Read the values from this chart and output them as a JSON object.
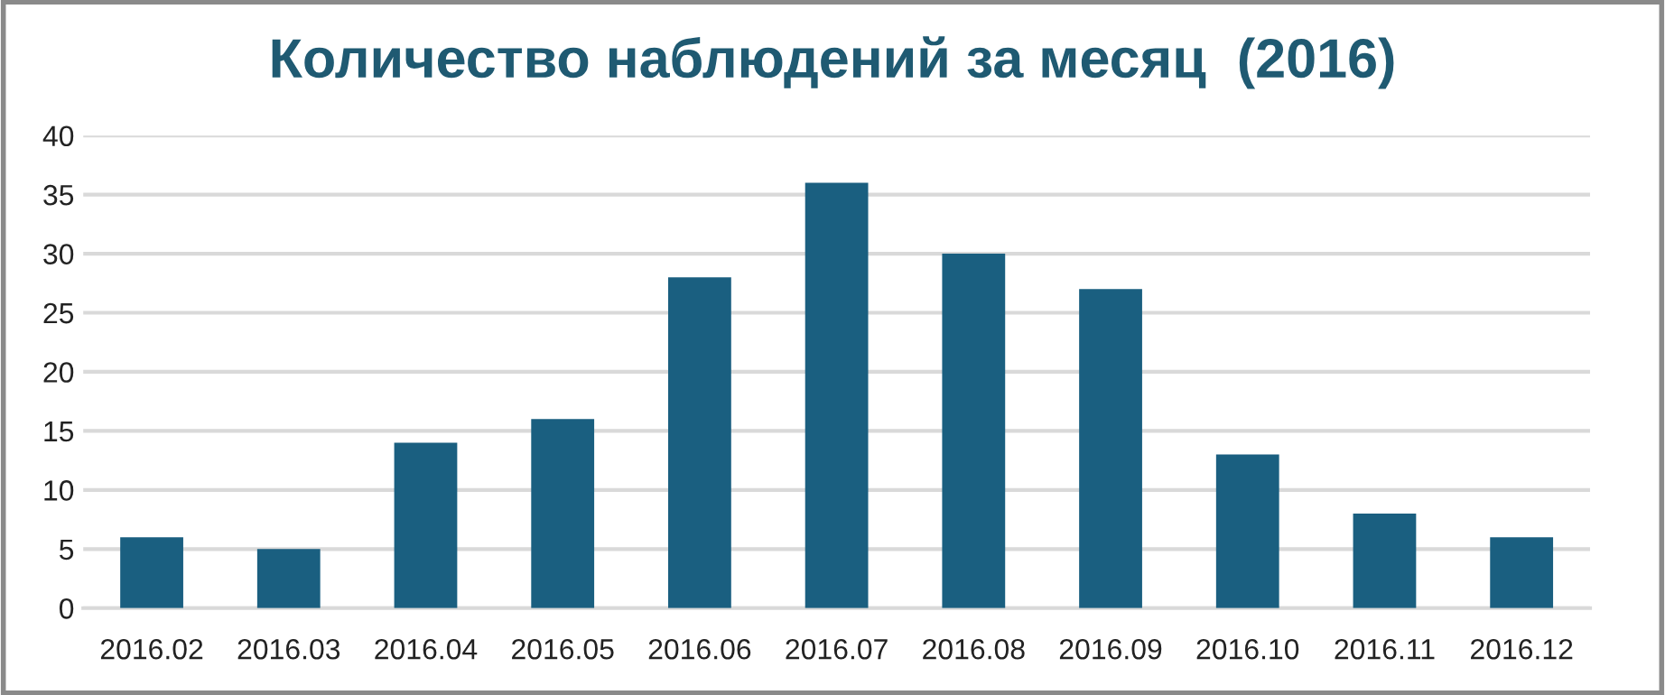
{
  "chart_data": {
    "type": "bar",
    "title": "Количество наблюдений за месяц  (2016)",
    "categories": [
      "2016.02",
      "2016.03",
      "2016.04",
      "2016.05",
      "2016.06",
      "2016.07",
      "2016.08",
      "2016.09",
      "2016.10",
      "2016.11",
      "2016.12"
    ],
    "values": [
      6,
      5,
      14,
      16,
      28,
      36,
      30,
      27,
      13,
      8,
      6
    ],
    "color": "#1a5f80",
    "ylim": [
      0,
      40
    ],
    "yticks": [
      0,
      5,
      10,
      15,
      20,
      25,
      30,
      35,
      40
    ],
    "grid": "y"
  }
}
